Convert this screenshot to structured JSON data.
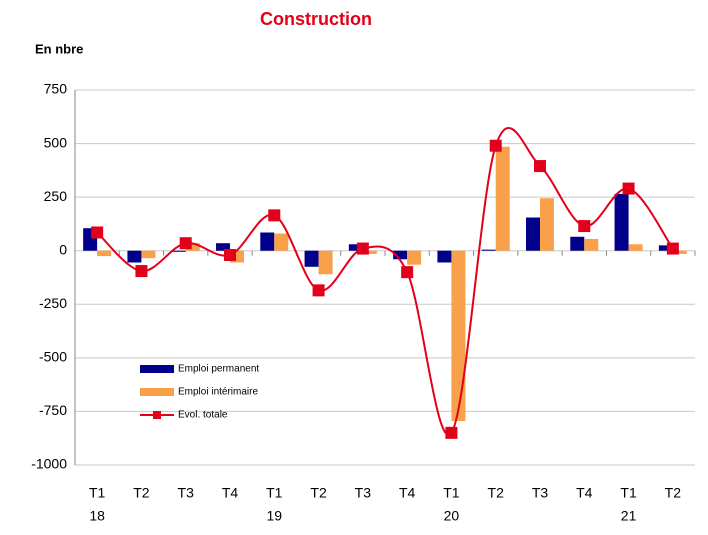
{
  "chart_data": {
    "type": "bar_line",
    "title": "Construction",
    "y_label": "En nbre",
    "categories": [
      "T1",
      "T2",
      "T3",
      "T4",
      "T1",
      "T2",
      "T3",
      "T4",
      "T1",
      "T2",
      "T3",
      "T4",
      "T1",
      "T2"
    ],
    "category_years": [
      "18",
      null,
      null,
      null,
      "19",
      null,
      null,
      null,
      "20",
      null,
      null,
      null,
      "21",
      null
    ],
    "series": [
      {
        "name": "Emploi permanent",
        "type": "bar",
        "color": "#00008b",
        "values": [
          105,
          -55,
          -5,
          35,
          85,
          -75,
          30,
          -40,
          -55,
          5,
          155,
          65,
          265,
          25
        ]
      },
      {
        "name": "Emploi intérimaire",
        "type": "bar",
        "color": "#f9a04a",
        "values": [
          -25,
          -35,
          35,
          -55,
          80,
          -110,
          -15,
          -65,
          -795,
          485,
          245,
          55,
          30,
          -15
        ]
      },
      {
        "name": "Evol. totale",
        "type": "line",
        "color": "#e2001a",
        "values": [
          85,
          -95,
          35,
          -20,
          165,
          -185,
          10,
          -100,
          -850,
          490,
          395,
          115,
          290,
          10
        ]
      }
    ],
    "ylim": [
      -1000,
      750
    ],
    "yticks": [
      -1000,
      -750,
      -500,
      -250,
      0,
      250,
      500,
      750
    ],
    "grid": true
  }
}
